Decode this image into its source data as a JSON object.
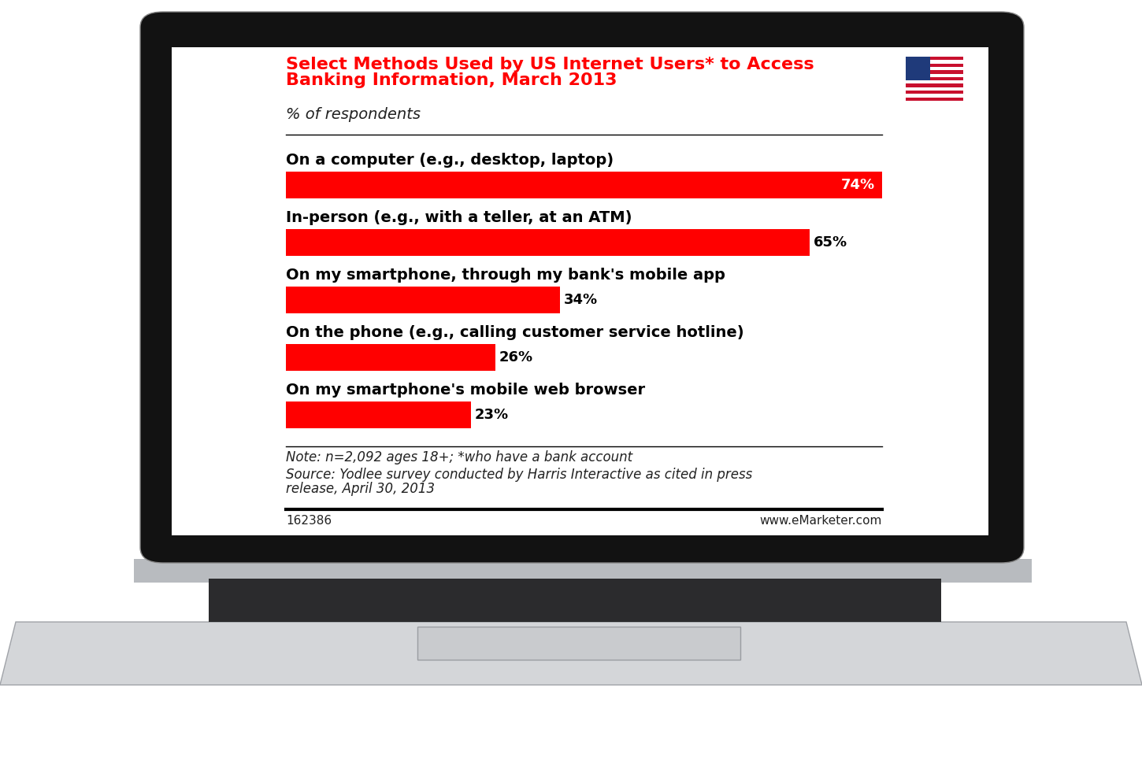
{
  "chart_data": {
    "type": "bar",
    "orientation": "horizontal",
    "title": "Select Methods Used by US Internet Users* to Access Banking Information, March 2013",
    "subtitle": "% of respondents",
    "categories": [
      "On a computer (e.g., desktop, laptop)",
      "In-person (e.g., with a teller, at an ATM)",
      "On my smartphone, through my bank's mobile app",
      "On the phone (e.g., calling customer service hotline)",
      "On my smartphone's mobile web browser"
    ],
    "values": [
      74,
      65,
      34,
      26,
      23
    ],
    "value_labels": [
      "74%",
      "65%",
      "34%",
      "26%",
      "23%"
    ],
    "color": "#ff0000",
    "xlim": [
      0,
      74
    ],
    "xticks": [],
    "grid": false,
    "data_labels": true,
    "notes": [
      "Note: n=2,092 ages 18+; *who have a bank account",
      "Source: Yodlee survey conducted by Harris Interactive as cited in press release, April 30, 2013"
    ],
    "footer": [
      "162386",
      "www.eMarketer.com"
    ]
  }
}
